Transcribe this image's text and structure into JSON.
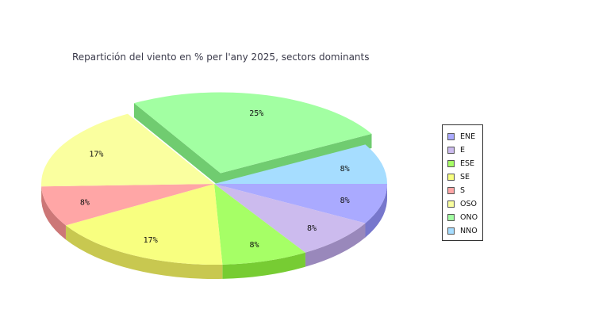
{
  "chart_data": {
    "type": "pie",
    "title": "Repartición del viento en % per l'any 2025, sectors dominants",
    "slices": [
      {
        "name": "ENE",
        "value": 8,
        "label": "8%",
        "color": "#aaaaff",
        "side": "#7777cc",
        "exploded": false
      },
      {
        "name": "E",
        "value": 8,
        "label": "8%",
        "color": "#ccbbee",
        "side": "#9988bb",
        "exploded": false
      },
      {
        "name": "ESE",
        "value": 8,
        "label": "8%",
        "color": "#a6ff66",
        "side": "#77cc33",
        "exploded": false
      },
      {
        "name": "SE",
        "value": 17,
        "label": "17%",
        "color": "#f8ff80",
        "side": "#c8c850",
        "exploded": false
      },
      {
        "name": "S",
        "value": 8,
        "label": "8%",
        "color": "#ffa6a6",
        "side": "#cc7777",
        "exploded": false
      },
      {
        "name": "OSO",
        "value": 17,
        "label": "17%",
        "color": "#faff9f",
        "side": "#c8cc70",
        "exploded": false
      },
      {
        "name": "ONO",
        "value": 25,
        "label": "25%",
        "color": "#a2ffa2",
        "side": "#70cc70",
        "exploded": true
      },
      {
        "name": "NNO",
        "value": 8,
        "label": "8%",
        "color": "#a6ddff",
        "side": "#77aacc",
        "exploded": false
      }
    ],
    "legend_position": "right"
  }
}
